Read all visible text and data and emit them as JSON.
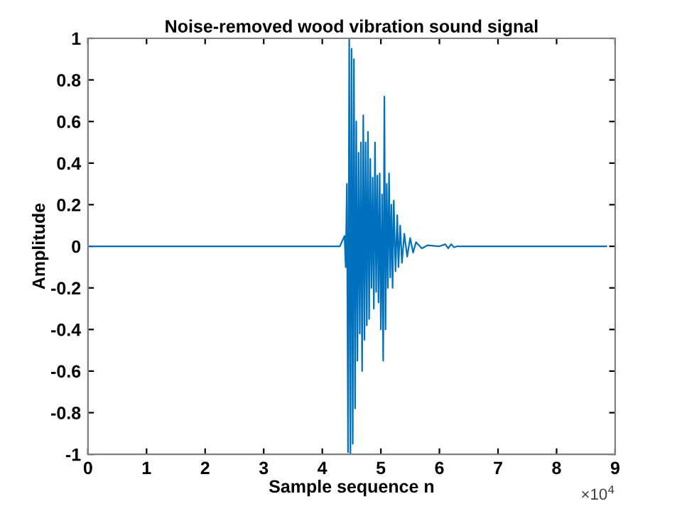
{
  "chart_data": {
    "type": "line",
    "title": "Noise-removed wood vibration sound signal",
    "xlabel": "Sample sequence n",
    "ylabel": "Amplitude",
    "annotations": [
      "×10$^{4}$"
    ],
    "x": [
      0,
      2,
      4.3,
      4.38,
      4.4,
      4.42,
      4.44,
      4.46,
      4.48,
      4.5,
      4.52,
      4.54,
      4.56,
      4.58,
      4.6,
      4.62,
      4.64,
      4.66,
      4.68,
      4.7,
      4.72,
      4.74,
      4.76,
      4.78,
      4.8,
      4.82,
      4.84,
      4.86,
      4.88,
      4.9,
      4.92,
      4.94,
      4.96,
      4.98,
      5.0,
      5.02,
      5.04,
      5.06,
      5.08,
      5.1,
      5.12,
      5.14,
      5.16,
      5.18,
      5.2,
      5.22,
      5.25,
      5.28,
      5.3,
      5.33,
      5.36,
      5.4,
      5.45,
      5.5,
      5.55,
      5.6,
      5.7,
      5.8,
      6.0,
      6.1,
      6.15,
      6.2,
      6.25,
      6.3,
      8.85
    ],
    "series": [
      {
        "color": "#0072bd",
        "values": [
          0,
          0,
          0,
          0.05,
          -0.1,
          0.3,
          -0.99,
          1.0,
          -1.0,
          0.95,
          -0.95,
          0.9,
          -0.78,
          0.6,
          -0.55,
          0.45,
          -0.42,
          0.5,
          -0.6,
          0.63,
          -0.45,
          0.5,
          -0.38,
          0.55,
          -0.35,
          0.42,
          -0.2,
          0.33,
          -0.3,
          0.5,
          -0.22,
          0.34,
          -0.27,
          0.35,
          -0.4,
          0.25,
          -0.55,
          0.72,
          -0.4,
          0.3,
          -0.2,
          0.35,
          -0.15,
          0.2,
          -0.2,
          0.22,
          -0.12,
          0.15,
          -0.1,
          0.1,
          -0.08,
          0.06,
          -0.05,
          0.04,
          -0.03,
          0.02,
          -0.01,
          0.005,
          0,
          0.01,
          -0.01,
          0.01,
          -0.005,
          0,
          0
        ]
      }
    ],
    "xlim": [
      0,
      9
    ],
    "xticks": [
      0,
      1,
      2,
      3,
      4,
      5,
      6,
      7,
      8,
      9
    ],
    "ylim": [
      -1,
      1
    ],
    "yticks": [
      -1,
      -0.8,
      -0.6,
      -0.4,
      -0.2,
      0,
      0.2,
      0.4,
      0.6,
      0.8,
      1
    ],
    "grid": false,
    "legend": false
  }
}
